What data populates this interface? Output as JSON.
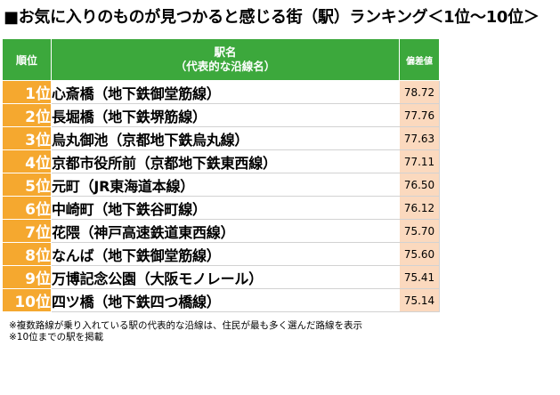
{
  "title": "■お気に入りのものが見つかると感じる街（駅）ランキング＜1位～10位＞",
  "header": {
    "rank": "順位",
    "station_line1": "駅名",
    "station_line2": "（代表的な沿線名）",
    "deviation": "偏差値"
  },
  "rows": [
    {
      "rank": "1位",
      "station": "心斎橋（地下鉄御堂筋線）",
      "value": "78.72"
    },
    {
      "rank": "2位",
      "station": "長堀橋（地下鉄堺筋線）",
      "value": "77.76"
    },
    {
      "rank": "3位",
      "station": "烏丸御池（京都地下鉄烏丸線）",
      "value": "77.63"
    },
    {
      "rank": "4位",
      "station": "京都市役所前（京都地下鉄東西線）",
      "value": "77.11"
    },
    {
      "rank": "5位",
      "station": "元町（JR東海道本線）",
      "value": "76.50"
    },
    {
      "rank": "6位",
      "station": "中崎町（地下鉄谷町線）",
      "value": "76.12"
    },
    {
      "rank": "7位",
      "station": "花隈（神戸高速鉄道東西線）",
      "value": "75.70"
    },
    {
      "rank": "8位",
      "station": "なんば（地下鉄御堂筋線）",
      "value": "75.60"
    },
    {
      "rank": "9位",
      "station": "万博記念公園（大阪モノレール）",
      "value": "75.41"
    },
    {
      "rank": "10位",
      "station": "四ツ橋（地下鉄四つ橋線）",
      "value": "75.14"
    }
  ],
  "notes": [
    "※複数路線が乗り入れている駅の代表的な沿線は、住民が最も多く選んだ路線を表示",
    "※10位までの駅を掲載"
  ],
  "colors": {
    "header_green": "#3ca83c",
    "rank_orange": "#f5a82f",
    "value_peach": "#fbd9be"
  }
}
